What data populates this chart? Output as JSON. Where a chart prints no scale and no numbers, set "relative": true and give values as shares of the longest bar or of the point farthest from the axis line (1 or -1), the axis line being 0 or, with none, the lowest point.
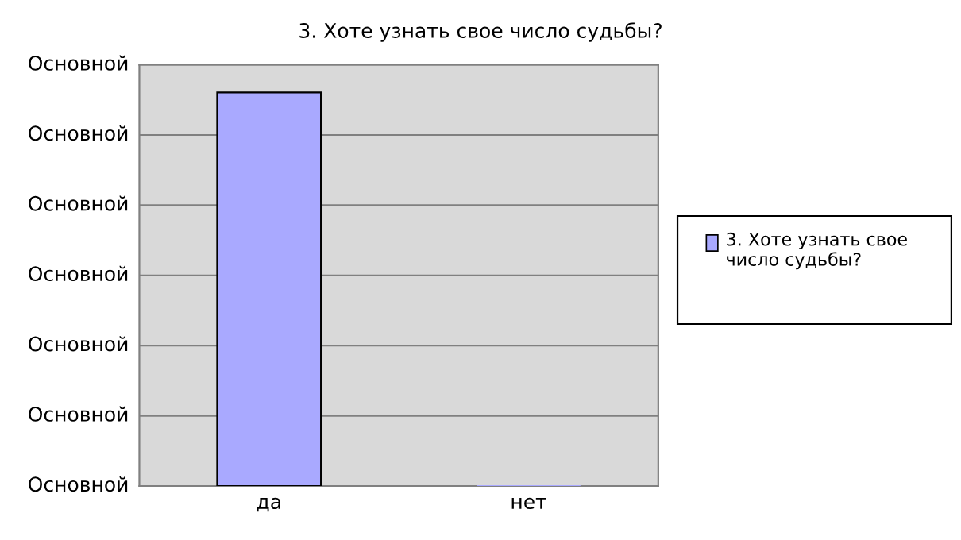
{
  "chart_data": {
    "type": "bar",
    "title": "3. Хоте узнать свое число судьбы?",
    "categories": [
      "да",
      "нет"
    ],
    "series": [
      {
        "name": "3. Хоте узнать свое число судьбы?",
        "color": "#a9a9ff",
        "values": [
          1,
          0
        ]
      }
    ],
    "relative": true,
    "annotations": [
      "Основной",
      "Основной",
      "Основной",
      "Основной",
      "Основной",
      "Основной",
      "Основной"
    ],
    "grid": "y",
    "legend": "right"
  }
}
